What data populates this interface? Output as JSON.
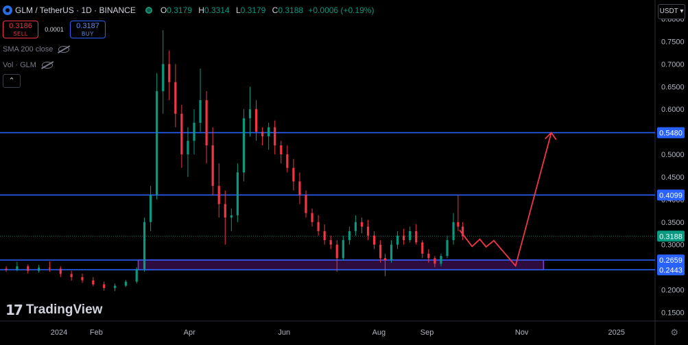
{
  "header": {
    "title": "GLM / TetherUS · 1D · BINANCE",
    "ohlc": [
      {
        "k": "O",
        "v": "0.3179"
      },
      {
        "k": "H",
        "v": "0.3314"
      },
      {
        "k": "L",
        "v": "0.3179"
      },
      {
        "k": "C",
        "v": "0.3188"
      },
      {
        "k": "",
        "v": "+0.0006 (+0.19%)"
      }
    ]
  },
  "trade": {
    "sell_price": "0.3186",
    "sell_label": "SELL",
    "spread": "0.0001",
    "buy_price": "0.3187",
    "buy_label": "BUY"
  },
  "indicators": {
    "sma": "SMA 200 close",
    "vol": "Vol · GLM"
  },
  "currency": "USDT",
  "brand": "TradingView",
  "colors": {
    "up": "#089981",
    "down": "#f23645",
    "level": "#2962ff",
    "zone": "#7b1fa2",
    "forecast": "#f23645"
  },
  "chart_data": {
    "type": "candlestick",
    "x_ticks": [
      "2024",
      "Feb",
      "Apr",
      "Jun",
      "Aug",
      "Sep",
      "Nov",
      "2025"
    ],
    "y_ticks": [
      "0.1500",
      "0.2000",
      "0.2500",
      "0.3000",
      "0.3500",
      "0.4000",
      "0.4500",
      "0.5000",
      "0.5500",
      "0.6000",
      "0.6500",
      "0.7000",
      "0.7500",
      "0.8000"
    ],
    "ylim": [
      0.14,
      0.81
    ],
    "price_labels": [
      {
        "value": 0.548,
        "text": "0.5480",
        "kind": "level"
      },
      {
        "value": 0.4099,
        "text": "0.4099",
        "kind": "level"
      },
      {
        "value": 0.3188,
        "text": "0.3188",
        "kind": "last"
      },
      {
        "value": 0.2659,
        "text": "0.2659",
        "kind": "level"
      },
      {
        "value": 0.2443,
        "text": "0.2443",
        "kind": "level"
      }
    ],
    "zone": [
      0.2443,
      0.2659
    ],
    "last_price": 0.3188,
    "forecast_path": [
      [
        "2024-09-22",
        0.332
      ],
      [
        "2024-09-30",
        0.296
      ],
      [
        "2024-10-05",
        0.312
      ],
      [
        "2024-10-09",
        0.295
      ],
      [
        "2024-10-14",
        0.309
      ],
      [
        "2024-10-28",
        0.253
      ],
      [
        "2024-11-20",
        0.548
      ]
    ],
    "candles": [
      [
        "2023-12-05",
        0.247,
        0.252,
        0.24,
        0.245
      ],
      [
        "2023-12-12",
        0.245,
        0.262,
        0.241,
        0.252
      ],
      [
        "2023-12-19",
        0.252,
        0.256,
        0.236,
        0.242
      ],
      [
        "2023-12-26",
        0.242,
        0.255,
        0.238,
        0.249
      ],
      [
        "2024-01-02",
        0.249,
        0.263,
        0.24,
        0.247
      ],
      [
        "2024-01-09",
        0.247,
        0.252,
        0.228,
        0.235
      ],
      [
        "2024-01-16",
        0.235,
        0.242,
        0.22,
        0.228
      ],
      [
        "2024-01-23",
        0.228,
        0.236,
        0.215,
        0.221
      ],
      [
        "2024-01-30",
        0.221,
        0.228,
        0.208,
        0.212
      ],
      [
        "2024-02-06",
        0.212,
        0.218,
        0.198,
        0.204
      ],
      [
        "2024-02-13",
        0.204,
        0.214,
        0.197,
        0.209
      ],
      [
        "2024-02-20",
        0.209,
        0.222,
        0.206,
        0.218
      ],
      [
        "2024-02-27",
        0.218,
        0.25,
        0.214,
        0.246
      ],
      [
        "2024-03-03",
        0.246,
        0.36,
        0.24,
        0.35
      ],
      [
        "2024-03-07",
        0.35,
        0.43,
        0.33,
        0.41
      ],
      [
        "2024-03-11",
        0.41,
        0.68,
        0.4,
        0.64
      ],
      [
        "2024-03-15",
        0.64,
        0.775,
        0.59,
        0.7
      ],
      [
        "2024-03-19",
        0.7,
        0.73,
        0.62,
        0.66
      ],
      [
        "2024-03-23",
        0.66,
        0.7,
        0.56,
        0.59
      ],
      [
        "2024-03-27",
        0.59,
        0.61,
        0.47,
        0.5
      ],
      [
        "2024-03-31",
        0.5,
        0.56,
        0.45,
        0.53
      ],
      [
        "2024-04-04",
        0.53,
        0.6,
        0.5,
        0.57
      ],
      [
        "2024-04-08",
        0.57,
        0.69,
        0.55,
        0.62
      ],
      [
        "2024-04-12",
        0.62,
        0.64,
        0.48,
        0.52
      ],
      [
        "2024-04-16",
        0.52,
        0.56,
        0.41,
        0.43
      ],
      [
        "2024-04-20",
        0.43,
        0.48,
        0.36,
        0.39
      ],
      [
        "2024-04-24",
        0.39,
        0.42,
        0.3,
        0.36
      ],
      [
        "2024-04-28",
        0.36,
        0.38,
        0.33,
        0.365
      ],
      [
        "2024-05-02",
        0.365,
        0.48,
        0.35,
        0.46
      ],
      [
        "2024-05-06",
        0.46,
        0.6,
        0.44,
        0.58
      ],
      [
        "2024-05-10",
        0.58,
        0.65,
        0.54,
        0.6
      ],
      [
        "2024-05-14",
        0.6,
        0.62,
        0.53,
        0.55
      ],
      [
        "2024-05-18",
        0.55,
        0.56,
        0.52,
        0.54
      ],
      [
        "2024-05-22",
        0.54,
        0.57,
        0.51,
        0.56
      ],
      [
        "2024-05-26",
        0.56,
        0.575,
        0.5,
        0.52
      ],
      [
        "2024-05-30",
        0.52,
        0.53,
        0.48,
        0.5
      ],
      [
        "2024-06-03",
        0.5,
        0.52,
        0.46,
        0.47
      ],
      [
        "2024-06-07",
        0.47,
        0.49,
        0.42,
        0.44
      ],
      [
        "2024-06-11",
        0.44,
        0.46,
        0.39,
        0.41
      ],
      [
        "2024-06-15",
        0.41,
        0.42,
        0.36,
        0.37
      ],
      [
        "2024-06-19",
        0.37,
        0.38,
        0.34,
        0.35
      ],
      [
        "2024-06-23",
        0.35,
        0.365,
        0.32,
        0.33
      ],
      [
        "2024-06-27",
        0.33,
        0.345,
        0.3,
        0.31
      ],
      [
        "2024-07-01",
        0.31,
        0.32,
        0.29,
        0.3
      ],
      [
        "2024-07-05",
        0.3,
        0.31,
        0.24,
        0.27
      ],
      [
        "2024-07-09",
        0.27,
        0.32,
        0.265,
        0.31
      ],
      [
        "2024-07-13",
        0.31,
        0.34,
        0.3,
        0.33
      ],
      [
        "2024-07-17",
        0.33,
        0.365,
        0.32,
        0.35
      ],
      [
        "2024-07-21",
        0.35,
        0.36,
        0.325,
        0.34
      ],
      [
        "2024-07-25",
        0.34,
        0.355,
        0.31,
        0.32
      ],
      [
        "2024-07-29",
        0.32,
        0.33,
        0.29,
        0.3
      ],
      [
        "2024-08-02",
        0.3,
        0.31,
        0.26,
        0.27
      ],
      [
        "2024-08-05",
        0.27,
        0.28,
        0.23,
        0.265
      ],
      [
        "2024-08-09",
        0.265,
        0.31,
        0.26,
        0.3
      ],
      [
        "2024-08-13",
        0.3,
        0.33,
        0.29,
        0.32
      ],
      [
        "2024-08-17",
        0.32,
        0.335,
        0.3,
        0.31
      ],
      [
        "2024-08-21",
        0.31,
        0.34,
        0.305,
        0.33
      ],
      [
        "2024-08-25",
        0.33,
        0.345,
        0.3,
        0.305
      ],
      [
        "2024-08-29",
        0.305,
        0.31,
        0.27,
        0.28
      ],
      [
        "2024-09-02",
        0.28,
        0.29,
        0.26,
        0.27
      ],
      [
        "2024-09-06",
        0.27,
        0.275,
        0.25,
        0.258
      ],
      [
        "2024-09-10",
        0.258,
        0.28,
        0.252,
        0.275
      ],
      [
        "2024-09-14",
        0.275,
        0.32,
        0.27,
        0.31
      ],
      [
        "2024-09-18",
        0.31,
        0.37,
        0.3,
        0.35
      ],
      [
        "2024-09-21",
        0.35,
        0.41,
        0.33,
        0.34
      ],
      [
        "2024-09-24",
        0.34,
        0.35,
        0.31,
        0.3188
      ]
    ]
  }
}
